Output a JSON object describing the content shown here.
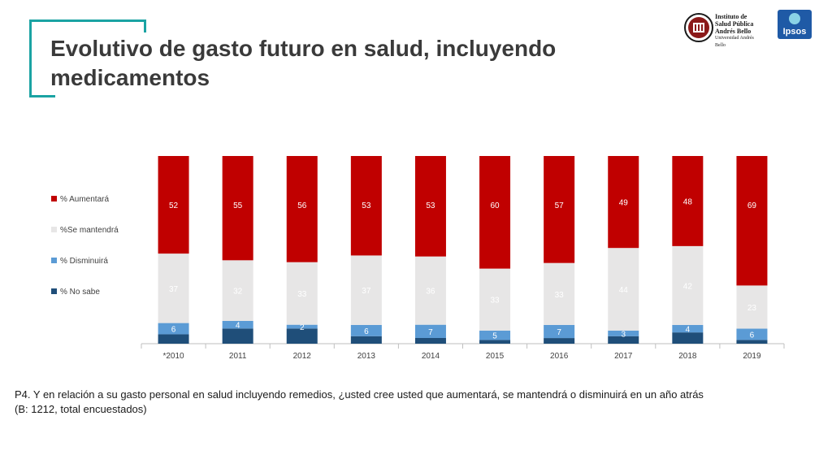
{
  "header": {
    "title_line1": "Evolutivo de gasto futuro en salud, incluyendo",
    "title_line2": "medicamentos"
  },
  "logos": {
    "institute_lines": [
      "Instituto de",
      "Salud Pública",
      "Andrés Bello"
    ],
    "institute_sub": "Universidad Andrés Bello",
    "ipsos_word": "Ipsos"
  },
  "footnote": {
    "line1": "P4. Y en relación a su gasto personal en salud incluyendo remedios, ¿usted cree usted que aumentará, se mantendrá o disminuirá en un año atrás",
    "line2": "(B: 1212, total encuestados)"
  },
  "chart_data": {
    "type": "bar",
    "stacked": true,
    "percent_stacked": true,
    "categories": [
      "*2010",
      "2011",
      "2012",
      "2013",
      "2014",
      "2015",
      "2016",
      "2017",
      "2018",
      "2019"
    ],
    "series": [
      {
        "name": "% No sabe",
        "color": "#1f4e79",
        "values": [
          5,
          8,
          8,
          4,
          3,
          2,
          3,
          4,
          6,
          2
        ],
        "labels": [
          null,
          null,
          null,
          null,
          null,
          null,
          null,
          null,
          null,
          null
        ]
      },
      {
        "name": "% Disminuirá",
        "color": "#5b9bd5",
        "values": [
          6,
          4,
          2,
          6,
          7,
          5,
          7,
          3,
          4,
          6
        ],
        "labels": [
          "6",
          "4",
          "2",
          "6",
          "7",
          "5",
          "7",
          "3",
          "4",
          "6"
        ]
      },
      {
        "name": "%Se mantendrá",
        "color": "#e7e6e6",
        "values": [
          37,
          32,
          33,
          37,
          36,
          33,
          33,
          44,
          42,
          23
        ],
        "labels": [
          "37",
          "32",
          "33",
          "37",
          "36",
          "33",
          "33",
          "44",
          "42",
          "23"
        ]
      },
      {
        "name": "% Aumentará",
        "color": "#c00000",
        "values": [
          52,
          55,
          56,
          53,
          53,
          60,
          57,
          49,
          48,
          69
        ],
        "labels": [
          "52",
          "55",
          "56",
          "53",
          "53",
          "60",
          "57",
          "49",
          "48",
          "69"
        ]
      }
    ],
    "legend_position": "left",
    "ylim": [
      0,
      100
    ],
    "grid": false
  }
}
